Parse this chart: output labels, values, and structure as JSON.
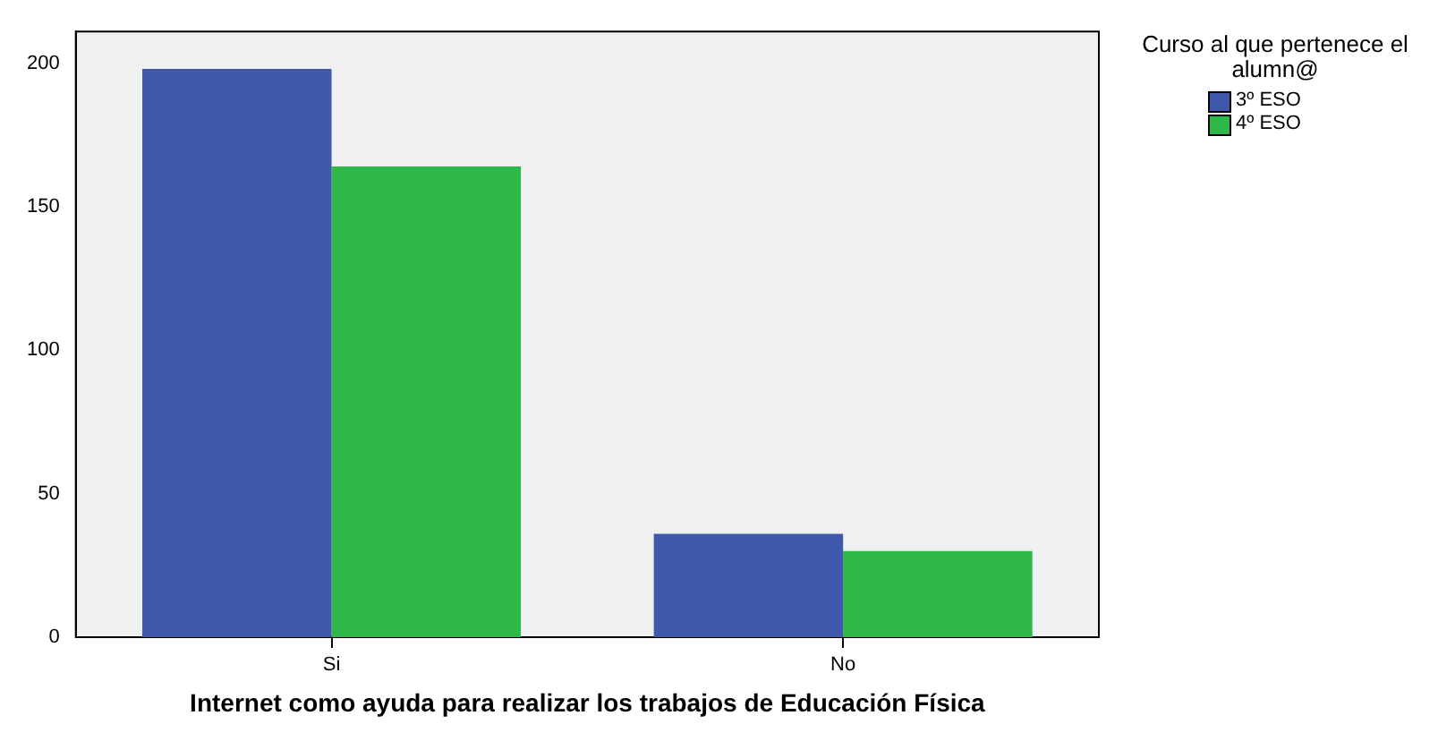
{
  "chart_data": {
    "type": "bar",
    "xlabel": "Internet como ayuda para realizar los trabajos de Educación Física",
    "legend_title": "Curso al que pertenece el alumn@",
    "categories": [
      "Si",
      "No"
    ],
    "series": [
      {
        "name": "3º ESO",
        "color": "#3e58ac",
        "values": [
          198,
          36
        ]
      },
      {
        "name": "4º ESO",
        "color": "#2eb848",
        "values": [
          164,
          30
        ]
      }
    ],
    "ylim": [
      0,
      211
    ],
    "yticks": [
      0,
      50,
      100,
      150,
      200
    ],
    "grid": false,
    "legend": "top right"
  }
}
